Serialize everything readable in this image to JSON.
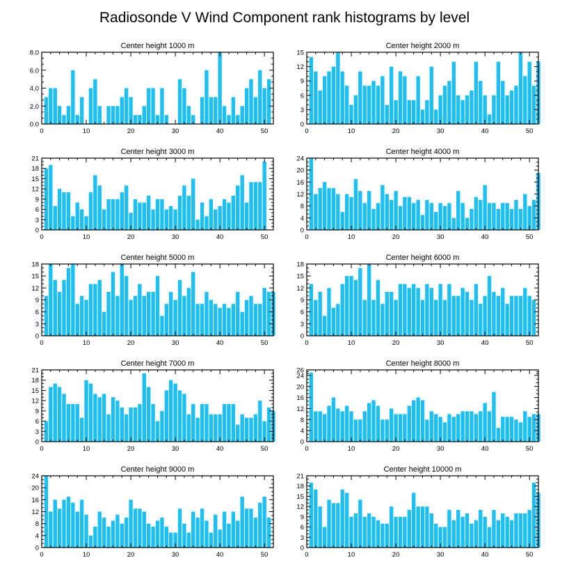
{
  "title": "Radiosonde V Wind Component rank histograms by level",
  "colors": {
    "bar": "#1ebff2",
    "axis": "#000000",
    "background": "#ffffff"
  },
  "chart_data": [
    {
      "type": "bar",
      "title": "Center height 1000 m",
      "xlim": [
        0,
        52
      ],
      "xticks": [
        0,
        10,
        20,
        30,
        40,
        50
      ],
      "ylim": [
        0,
        8
      ],
      "yticks": [
        "0.0",
        "2.0",
        "4.0",
        "6.0",
        "8.0"
      ],
      "values": [
        3,
        4,
        4,
        2,
        1,
        2,
        6,
        1,
        3,
        0,
        4,
        5,
        2,
        0,
        2,
        2,
        2,
        3,
        4,
        3,
        1,
        1,
        2,
        4,
        4,
        1,
        4,
        1,
        0,
        0,
        5,
        4,
        2,
        1,
        0,
        3,
        6,
        3,
        3,
        8,
        2,
        1,
        3,
        1,
        2,
        4,
        5,
        3,
        6,
        4,
        5
      ]
    },
    {
      "type": "bar",
      "title": "Center height 2000 m",
      "xlim": [
        0,
        52
      ],
      "xticks": [
        0,
        10,
        20,
        30,
        40,
        50
      ],
      "ylim": [
        0,
        15
      ],
      "yticks": [
        "0",
        "3",
        "6",
        "9",
        "12",
        "15"
      ],
      "values": [
        14,
        11,
        7,
        10,
        11,
        12,
        15,
        11,
        8,
        4,
        6,
        11,
        8,
        8,
        9,
        8,
        10,
        4,
        12,
        5,
        11,
        10,
        5,
        5,
        10,
        3,
        5,
        12,
        3,
        6,
        8,
        9,
        13,
        6,
        5,
        6,
        7,
        13,
        9,
        6,
        2,
        6,
        13,
        9,
        6,
        7,
        8,
        15,
        10,
        13,
        8,
        13
      ]
    },
    {
      "type": "bar",
      "title": "Center height 3000 m",
      "xlim": [
        0,
        52
      ],
      "xticks": [
        0,
        10,
        20,
        30,
        40,
        50
      ],
      "ylim": [
        0,
        21
      ],
      "yticks": [
        "0",
        "3",
        "6",
        "9",
        "12",
        "15",
        "18",
        "21"
      ],
      "values": [
        18,
        19,
        7,
        12,
        11,
        11,
        4,
        8,
        6,
        4,
        11,
        16,
        13,
        6,
        9,
        9,
        9,
        11,
        13,
        5,
        9,
        8,
        8,
        10,
        6,
        9,
        9,
        6,
        7,
        6,
        10,
        13,
        10,
        15,
        3,
        8,
        4,
        9,
        6,
        7,
        9,
        8,
        10,
        13,
        16,
        8,
        14,
        14,
        14,
        20
      ]
    },
    {
      "type": "bar",
      "title": "Center height 4000 m",
      "xlim": [
        0,
        52
      ],
      "xticks": [
        0,
        10,
        20,
        30,
        40,
        50
      ],
      "ylim": [
        0,
        24
      ],
      "yticks": [
        "0",
        "4",
        "8",
        "12",
        "16",
        "20",
        "24"
      ],
      "values": [
        24,
        12,
        14,
        16,
        14,
        14,
        12,
        6,
        12,
        11,
        17,
        13,
        9,
        13,
        7,
        9,
        15,
        12,
        10,
        13,
        8,
        11,
        11,
        9,
        10,
        5,
        10,
        9,
        6,
        9,
        8,
        9,
        4,
        13,
        9,
        4,
        7,
        11,
        10,
        15,
        9,
        9,
        7,
        9,
        9,
        7,
        10,
        7,
        12,
        8,
        10,
        19
      ]
    },
    {
      "type": "bar",
      "title": "Center height 5000 m",
      "xlim": [
        0,
        52
      ],
      "xticks": [
        0,
        10,
        20,
        30,
        40,
        50
      ],
      "ylim": [
        0,
        18
      ],
      "yticks": [
        "0",
        "3",
        "6",
        "9",
        "12",
        "15",
        "18"
      ],
      "values": [
        10,
        18,
        14,
        11,
        14,
        17,
        18,
        8,
        10,
        9,
        13,
        13,
        14,
        6,
        11,
        16,
        10,
        18,
        15,
        9,
        10,
        13,
        10,
        11,
        11,
        15,
        5,
        8,
        11,
        9,
        14,
        10,
        12,
        16,
        8,
        8,
        11,
        9,
        8,
        7,
        8,
        7,
        8,
        11,
        6,
        9,
        10,
        8,
        8,
        12,
        11,
        11
      ]
    },
    {
      "type": "bar",
      "title": "Center height 6000 m",
      "xlim": [
        0,
        52
      ],
      "xticks": [
        0,
        10,
        20,
        30,
        40,
        50
      ],
      "ylim": [
        0,
        18
      ],
      "yticks": [
        "0",
        "3",
        "6",
        "9",
        "12",
        "15",
        "18"
      ],
      "values": [
        13,
        9,
        11,
        5,
        12,
        7,
        8,
        13,
        15,
        15,
        14,
        17,
        9,
        18,
        9,
        14,
        8,
        11,
        11,
        9,
        13,
        13,
        12,
        13,
        12,
        9,
        13,
        12,
        9,
        13,
        9,
        13,
        10,
        10,
        12,
        11,
        9,
        13,
        8,
        10,
        15,
        11,
        10,
        12,
        8,
        10,
        10,
        10,
        12,
        10,
        9
      ]
    },
    {
      "type": "bar",
      "title": "Center height 7000 m",
      "xlim": [
        0,
        52
      ],
      "xticks": [
        0,
        10,
        20,
        30,
        40,
        50
      ],
      "ylim": [
        0,
        21
      ],
      "yticks": [
        "0",
        "3",
        "6",
        "9",
        "12",
        "15",
        "18",
        "21"
      ],
      "values": [
        6,
        16,
        17,
        16,
        14,
        11,
        11,
        11,
        7,
        18,
        17,
        14,
        13,
        14,
        8,
        13,
        12,
        10,
        8,
        10,
        10,
        11,
        20,
        16,
        11,
        6,
        9,
        15,
        18,
        17,
        15,
        14,
        8,
        11,
        7,
        11,
        11,
        8,
        8,
        8,
        11,
        11,
        11,
        5,
        8,
        7,
        7,
        8,
        12,
        6,
        10,
        9
      ]
    },
    {
      "type": "bar",
      "title": "Center height 8000 m",
      "xlim": [
        0,
        52
      ],
      "xticks": [
        0,
        10,
        20,
        30,
        40,
        50
      ],
      "ylim": [
        0,
        26
      ],
      "yticks": [
        "0",
        "4",
        "8",
        "12",
        "16",
        "20",
        "24",
        "26"
      ],
      "values": [
        25,
        11,
        11,
        10,
        13,
        16,
        12,
        11,
        13,
        11,
        8,
        8,
        11,
        14,
        15,
        13,
        8,
        8,
        12,
        10,
        10,
        10,
        13,
        15,
        16,
        15,
        8,
        11,
        10,
        9,
        7,
        10,
        9,
        10,
        11,
        11,
        11,
        10,
        11,
        14,
        11,
        18,
        5,
        9,
        9,
        9,
        8,
        7,
        11,
        9,
        10,
        10
      ]
    },
    {
      "type": "bar",
      "title": "Center height 9000 m",
      "xlim": [
        0,
        52
      ],
      "xticks": [
        0,
        10,
        20,
        30,
        40,
        50
      ],
      "ylim": [
        0,
        24
      ],
      "yticks": [
        "0",
        "4",
        "8",
        "12",
        "16",
        "20",
        "24"
      ],
      "values": [
        24,
        12,
        16,
        13,
        16,
        17,
        15,
        12,
        16,
        11,
        4,
        7,
        12,
        10,
        7,
        9,
        11,
        8,
        10,
        16,
        13,
        13,
        12,
        8,
        7,
        9,
        10,
        7,
        5,
        5,
        13,
        8,
        5,
        12,
        10,
        13,
        9,
        5,
        11,
        6,
        12,
        8,
        12,
        9,
        17,
        13,
        13,
        10,
        15,
        17,
        10
      ]
    },
    {
      "type": "bar",
      "title": "Center height 10000 m",
      "xlim": [
        0,
        52
      ],
      "xticks": [
        0,
        10,
        20,
        30,
        40,
        50
      ],
      "ylim": [
        0,
        21
      ],
      "yticks": [
        "0",
        "3",
        "6",
        "9",
        "12",
        "15",
        "18",
        "21"
      ],
      "values": [
        19,
        17,
        12,
        6,
        14,
        13,
        13,
        17,
        16,
        9,
        10,
        14,
        9,
        10,
        9,
        8,
        7,
        7,
        12,
        9,
        9,
        9,
        11,
        16,
        12,
        12,
        12,
        10,
        7,
        6,
        6,
        11,
        8,
        11,
        9,
        10,
        7,
        8,
        11,
        9,
        6,
        11,
        8,
        10,
        9,
        8,
        10,
        10,
        10,
        11,
        19,
        16
      ]
    }
  ]
}
